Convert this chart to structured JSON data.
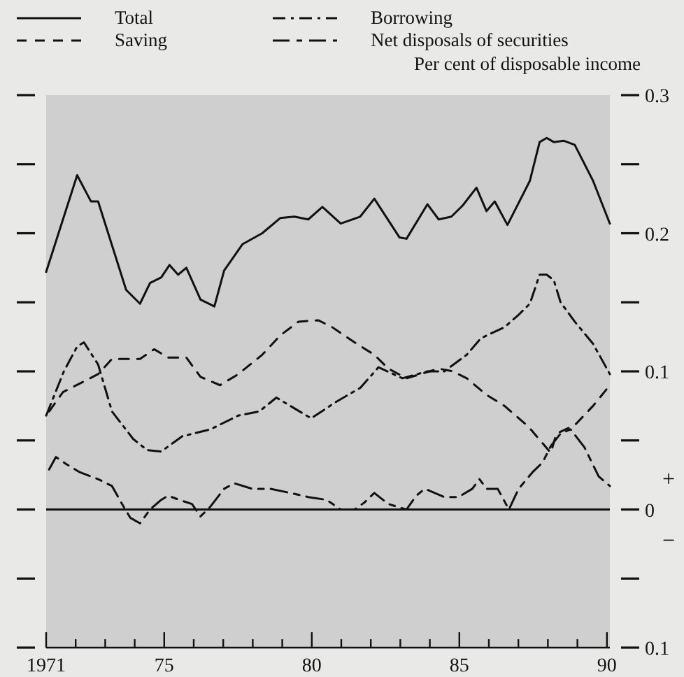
{
  "chart_data": {
    "type": "line",
    "ylabel": "Per cent of disposable income",
    "xlim": [
      1971,
      1990.1
    ],
    "xticks": [
      {
        "value": 1971,
        "label": "1971"
      },
      {
        "value": 1972,
        "label": null
      },
      {
        "value": 1973,
        "label": null
      },
      {
        "value": 1974,
        "label": null
      },
      {
        "value": 1975,
        "label": "75"
      },
      {
        "value": 1976,
        "label": null
      },
      {
        "value": 1977,
        "label": null
      },
      {
        "value": 1978,
        "label": null
      },
      {
        "value": 1979,
        "label": null
      },
      {
        "value": 1980,
        "label": "80"
      },
      {
        "value": 1981,
        "label": null
      },
      {
        "value": 1982,
        "label": null
      },
      {
        "value": 1983,
        "label": null
      },
      {
        "value": 1984,
        "label": null
      },
      {
        "value": 1985,
        "label": "85"
      },
      {
        "value": 1986,
        "label": null
      },
      {
        "value": 1987,
        "label": null
      },
      {
        "value": 1988,
        "label": null
      },
      {
        "value": 1989,
        "label": null
      },
      {
        "value": 1990,
        "label": "90"
      }
    ],
    "ylim": [
      -0.1,
      0.3
    ],
    "yticks": [
      {
        "value": -0.1,
        "label": "0.1"
      },
      {
        "value": -0.05,
        "label": null
      },
      0,
      {
        "value": 0.05,
        "label": null
      },
      0.1,
      {
        "value": 0.15,
        "label": null
      },
      0.2,
      {
        "value": 0.25,
        "label": null
      },
      0.3
    ],
    "grid": false,
    "legend": "top",
    "marker": "none",
    "ref_lines": [
      {
        "axis": "y",
        "value": 0,
        "color": "#111111",
        "line_style": "solid"
      }
    ],
    "annotations": [
      "+",
      "−"
    ],
    "series": [
      {
        "name": "Total",
        "color": "#111111",
        "line_style": "solid",
        "x": [
          1971,
          1972.05,
          1972.52,
          1972.76,
          1973.71,
          1974.18,
          1974.52,
          1974.9,
          1975.18,
          1975.47,
          1975.75,
          1976.23,
          1976.7,
          1977.03,
          1977.65,
          1978.32,
          1978.93,
          1979.41,
          1979.88,
          1980.36,
          1980.98,
          1981.64,
          1982.12,
          1982.97,
          1983.21,
          1983.92,
          1984.3,
          1984.73,
          1985.11,
          1985.58,
          1985.92,
          1986.2,
          1986.63,
          1987.39,
          1987.72,
          1987.96,
          1988.2,
          1988.53,
          1988.91,
          1989.53,
          1990.1
        ],
        "values": [
          0.172,
          0.242,
          0.223,
          0.223,
          0.159,
          0.149,
          0.164,
          0.168,
          0.177,
          0.17,
          0.175,
          0.152,
          0.147,
          0.173,
          0.192,
          0.2,
          0.211,
          0.212,
          0.21,
          0.219,
          0.207,
          0.212,
          0.225,
          0.197,
          0.196,
          0.221,
          0.21,
          0.212,
          0.22,
          0.233,
          0.216,
          0.223,
          0.206,
          0.238,
          0.266,
          0.269,
          0.266,
          0.267,
          0.264,
          0.238,
          0.207
        ]
      },
      {
        "name": "Saving",
        "color": "#111111",
        "line_style": "dashed",
        "x": [
          1971.1,
          1971.57,
          1972.76,
          1973.23,
          1974.18,
          1974.66,
          1975.13,
          1975.75,
          1976.23,
          1976.89,
          1977.51,
          1978.32,
          1978.93,
          1979.55,
          1980.22,
          1980.69,
          1981.45,
          1982.12,
          1982.59,
          1983.21,
          1984.3,
          1984.78,
          1985.25,
          1985.92,
          1986.53,
          1987.34,
          1988.1,
          1988.29,
          1988.91,
          1989.53,
          1990.1
        ],
        "values": [
          0.071,
          0.085,
          0.098,
          0.109,
          0.109,
          0.116,
          0.11,
          0.11,
          0.096,
          0.09,
          0.098,
          0.112,
          0.126,
          0.136,
          0.137,
          0.132,
          0.121,
          0.112,
          0.102,
          0.095,
          0.102,
          0.1,
          0.095,
          0.083,
          0.075,
          0.06,
          0.041,
          0.055,
          0.061,
          0.075,
          0.09
        ]
      },
      {
        "name": "Borrowing",
        "color": "#111111",
        "line_style": "dashdot",
        "x": [
          1971,
          1971.6,
          1972.05,
          1972.28,
          1972.76,
          1973.23,
          1973.95,
          1974.42,
          1974.9,
          1975.61,
          1976.56,
          1977.51,
          1978.22,
          1978.8,
          1979.98,
          1980.83,
          1981.64,
          1982.26,
          1983.07,
          1983.92,
          1984.49,
          1985.25,
          1985.73,
          1986.53,
          1987.01,
          1987.39,
          1987.72,
          1987.96,
          1988.2,
          1988.43,
          1988.91,
          1989.53,
          1990.1
        ],
        "values": [
          0.068,
          0.1,
          0.118,
          0.121,
          0.105,
          0.071,
          0.051,
          0.043,
          0.042,
          0.053,
          0.058,
          0.068,
          0.071,
          0.081,
          0.066,
          0.078,
          0.088,
          0.103,
          0.095,
          0.1,
          0.1,
          0.112,
          0.124,
          0.132,
          0.141,
          0.149,
          0.17,
          0.17,
          0.166,
          0.15,
          0.136,
          0.12,
          0.098
        ]
      },
      {
        "name": "Net disposals of securities",
        "color": "#111111",
        "line_style": "longdash",
        "x": [
          1971.1,
          1971.33,
          1971.67,
          1972.14,
          1972.76,
          1973.23,
          1973.57,
          1973.85,
          1974.18,
          1974.52,
          1974.9,
          1975.13,
          1975.51,
          1975.94,
          1976.23,
          1976.56,
          1977.03,
          1977.37,
          1977.98,
          1978.6,
          1979.27,
          1979.88,
          1980.5,
          1980.98,
          1981.45,
          1981.78,
          1982.12,
          1982.59,
          1983.21,
          1983.54,
          1983.83,
          1984.49,
          1984.97,
          1985.44,
          1985.68,
          1985.92,
          1986.3,
          1986.68,
          1987.01,
          1987.48,
          1987.82,
          1988.1,
          1988.43,
          1988.77,
          1989.24,
          1989.72,
          1990.1
        ],
        "values": [
          0.029,
          0.038,
          0.033,
          0.027,
          0.022,
          0.017,
          0.004,
          -0.006,
          -0.01,
          0,
          0.007,
          0.01,
          0.007,
          0.004,
          -0.005,
          0.002,
          0.015,
          0.019,
          0.015,
          0.015,
          0.012,
          0.009,
          0.007,
          0,
          0,
          0.005,
          0.012,
          0.004,
          0,
          0.01,
          0.015,
          0.009,
          0.009,
          0.015,
          0.022,
          0.015,
          0.015,
          0,
          0.015,
          0.027,
          0.034,
          0.046,
          0.055,
          0.058,
          0.045,
          0.024,
          0.017
        ]
      }
    ]
  }
}
